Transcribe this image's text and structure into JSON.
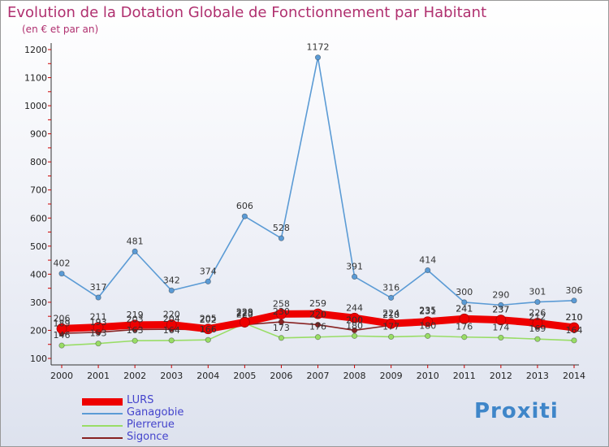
{
  "title": "Evolution de la Dotation Globale de Fonctionnement par Habitant",
  "subtitle": "(en € et par an)",
  "logo": "Proxiti",
  "chart_data": {
    "type": "line",
    "x": [
      "2000",
      "2001",
      "2002",
      "2003",
      "2004",
      "2005",
      "2006",
      "2007",
      "2008",
      "2009",
      "2010",
      "2011",
      "2012",
      "2013",
      "2014"
    ],
    "ylim": [
      100,
      1200
    ],
    "yticks": [
      100,
      200,
      300,
      400,
      500,
      600,
      700,
      800,
      900,
      1000,
      1100,
      1200
    ],
    "grid": false,
    "legend_position": "bottom-left",
    "series": [
      {
        "name": "LURS",
        "color": "#ee0000",
        "values": [
          206,
          211,
          219,
          220,
          205,
          229,
          258,
          259,
          244,
          224,
          231,
          241,
          237,
          226,
          210
        ]
      },
      {
        "name": "Ganagobie",
        "color": "#5b9bd5",
        "values": [
          402,
          317,
          481,
          342,
          374,
          606,
          528,
          1172,
          391,
          316,
          414,
          300,
          290,
          301,
          306
        ]
      },
      {
        "name": "Pierrerue",
        "color": "#99dd66",
        "values": [
          146,
          153,
          163,
          164,
          166,
          225,
          173,
          176,
          180,
          177,
          180,
          176,
          174,
          169,
          164
        ]
      },
      {
        "name": "Sigonce",
        "color": "#882222",
        "values": [
          189,
          193,
          203,
          204,
          202,
          220,
          230,
          220,
          200,
          218,
          235,
          241,
          237,
          212,
          210
        ]
      }
    ]
  }
}
